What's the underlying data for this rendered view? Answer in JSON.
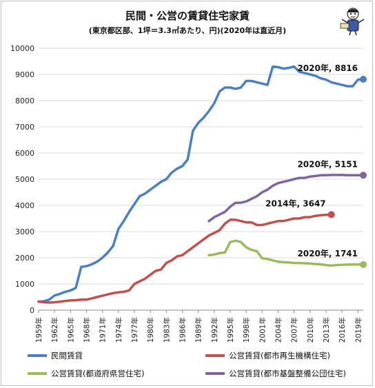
{
  "title": "民間・公営の賃貸住宅家賃",
  "subtitle": "(東京都区部、1坪＝3.3㎡あたり、円)(2020年は直近月)",
  "chart_data": {
    "type": "line",
    "ylim": [
      0,
      10000
    ],
    "yticks": [
      0,
      1000,
      2000,
      3000,
      4000,
      5000,
      6000,
      7000,
      8000,
      9000,
      10000
    ],
    "xlim": [
      1959,
      2020
    ],
    "xticks": [
      "1959年",
      "1962年",
      "1965年",
      "1968年",
      "1971年",
      "1974年",
      "1977年",
      "1980年",
      "1983年",
      "1986年",
      "1989年",
      "1992年",
      "1995年",
      "1998年",
      "2001年",
      "2004年",
      "2007年",
      "2010年",
      "2013年",
      "2016年",
      "2019年"
    ],
    "xtick_values": [
      1959,
      1962,
      1965,
      1968,
      1971,
      1974,
      1977,
      1980,
      1983,
      1986,
      1989,
      1992,
      1995,
      1998,
      2001,
      2004,
      2007,
      2010,
      2013,
      2016,
      2019
    ],
    "grid": "horizontal",
    "legend_placement": "bottom",
    "series": [
      {
        "name": "民間賃貸",
        "color": "#4a7fc1",
        "x": [
          1959,
          1960,
          1961,
          1962,
          1963,
          1964,
          1965,
          1966,
          1967,
          1968,
          1969,
          1970,
          1971,
          1972,
          1973,
          1974,
          1975,
          1976,
          1977,
          1978,
          1979,
          1980,
          1981,
          1982,
          1983,
          1984,
          1985,
          1986,
          1987,
          1988,
          1989,
          1990,
          1991,
          1992,
          1993,
          1994,
          1995,
          1996,
          1997,
          1998,
          1999,
          2000,
          2001,
          2002,
          2003,
          2004,
          2005,
          2006,
          2007,
          2008,
          2009,
          2010,
          2011,
          2012,
          2013,
          2014,
          2015,
          2016,
          2017,
          2018,
          2019,
          2020
        ],
        "values": [
          320,
          340,
          400,
          560,
          620,
          700,
          750,
          850,
          1650,
          1680,
          1750,
          1850,
          2000,
          2200,
          2450,
          3100,
          3400,
          3750,
          4050,
          4350,
          4450,
          4600,
          4750,
          4900,
          5000,
          5250,
          5400,
          5500,
          5750,
          6850,
          7150,
          7350,
          7600,
          7900,
          8350,
          8500,
          8500,
          8450,
          8500,
          8750,
          8750,
          8700,
          8650,
          8600,
          9300,
          9280,
          9220,
          9250,
          9300,
          9100,
          9050,
          9000,
          8950,
          8850,
          8800,
          8700,
          8650,
          8600,
          8550,
          8550,
          8800,
          8816
        ],
        "label": "2020年, 8816"
      },
      {
        "name": "公営賃貸(都市再生機構住宅)",
        "color": "#c0504d",
        "x": [
          1959,
          1960,
          1961,
          1962,
          1963,
          1964,
          1965,
          1966,
          1967,
          1968,
          1969,
          1970,
          1971,
          1972,
          1973,
          1974,
          1975,
          1976,
          1977,
          1978,
          1979,
          1980,
          1981,
          1982,
          1983,
          1984,
          1985,
          1986,
          1987,
          1988,
          1989,
          1990,
          1991,
          1992,
          1993,
          1994,
          1995,
          1996,
          1997,
          1998,
          1999,
          2000,
          2001,
          2002,
          2003,
          2004,
          2005,
          2006,
          2007,
          2008,
          2009,
          2010,
          2011,
          2012,
          2013,
          2014
        ],
        "values": [
          330,
          300,
          290,
          300,
          320,
          350,
          370,
          380,
          400,
          400,
          450,
          500,
          550,
          600,
          650,
          680,
          700,
          750,
          1000,
          1100,
          1200,
          1350,
          1500,
          1550,
          1800,
          1900,
          2050,
          2100,
          2250,
          2400,
          2550,
          2700,
          2850,
          2950,
          3050,
          3300,
          3450,
          3450,
          3400,
          3350,
          3350,
          3250,
          3250,
          3300,
          3350,
          3400,
          3400,
          3450,
          3500,
          3500,
          3550,
          3550,
          3600,
          3620,
          3640,
          3647
        ],
        "label": "2014年, 3647"
      },
      {
        "name": "公営賃貸(都道府県営住宅)",
        "color": "#9bbb59",
        "x": [
          1991,
          1992,
          1993,
          1994,
          1995,
          1996,
          1997,
          1998,
          1999,
          2000,
          2001,
          2002,
          2003,
          2004,
          2005,
          2006,
          2007,
          2008,
          2009,
          2010,
          2011,
          2012,
          2013,
          2014,
          2015,
          2016,
          2017,
          2018,
          2019,
          2020
        ],
        "values": [
          2100,
          2120,
          2180,
          2200,
          2600,
          2650,
          2600,
          2400,
          2300,
          2250,
          1980,
          1950,
          1900,
          1850,
          1830,
          1820,
          1800,
          1800,
          1790,
          1780,
          1760,
          1750,
          1720,
          1700,
          1720,
          1730,
          1740,
          1740,
          1741,
          1741
        ],
        "label": "2020年, 1741"
      },
      {
        "name": "公営賃貸(都市基盤整備公団住宅)",
        "color": "#8064a2",
        "x": [
          1991,
          1992,
          1993,
          1994,
          1995,
          1996,
          1997,
          1998,
          1999,
          2000,
          2001,
          2002,
          2003,
          2004,
          2005,
          2006,
          2007,
          2008,
          2009,
          2010,
          2011,
          2012,
          2013,
          2014,
          2015,
          2016,
          2017,
          2018,
          2019,
          2020
        ],
        "values": [
          3400,
          3550,
          3650,
          3750,
          3950,
          4100,
          4100,
          4150,
          4250,
          4350,
          4500,
          4600,
          4750,
          4850,
          4900,
          4950,
          5000,
          5050,
          5050,
          5100,
          5120,
          5150,
          5150,
          5160,
          5160,
          5160,
          5150,
          5150,
          5151,
          5151
        ],
        "label": "2020年, 5151"
      }
    ]
  }
}
